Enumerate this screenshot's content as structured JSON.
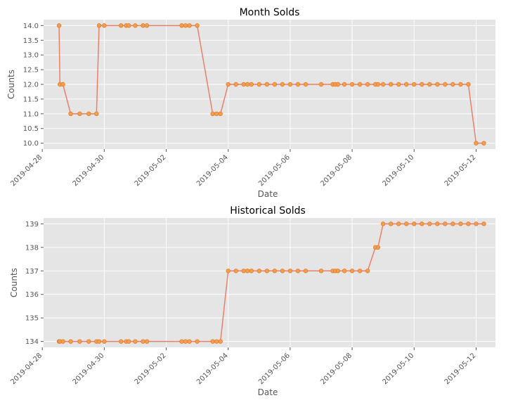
{
  "chart_data": [
    {
      "type": "line",
      "title": "Month Solds",
      "xlabel": "Date",
      "ylabel": "Counts",
      "xlim": [
        "2019-04-28T01:00",
        "2019-05-12T15:00"
      ],
      "ylim": [
        9.8,
        14.2
      ],
      "yticks": [
        10.0,
        10.5,
        11.0,
        11.5,
        12.0,
        12.5,
        13.0,
        13.5,
        14.0
      ],
      "ytick_labels": [
        "10.0",
        "10.5",
        "11.0",
        "11.5",
        "12.0",
        "12.5",
        "13.0",
        "13.5",
        "14.0"
      ],
      "xticks": [
        "2019-04-28",
        "2019-04-30",
        "2019-05-02",
        "2019-05-04",
        "2019-05-06",
        "2019-05-08",
        "2019-05-10",
        "2019-05-12"
      ],
      "grid": true,
      "x": [
        "2019-04-28T13:00",
        "2019-04-28T13:40",
        "2019-04-28T16:00",
        "2019-04-28T22:00",
        "2019-04-29T05:00",
        "2019-04-29T12:00",
        "2019-04-29T18:00",
        "2019-04-29T20:00",
        "2019-04-30T00:00",
        "2019-04-30T13:00",
        "2019-04-30T17:00",
        "2019-04-30T19:00",
        "2019-05-01T00:00",
        "2019-05-01T06:00",
        "2019-05-01T09:00",
        "2019-05-02T12:00",
        "2019-05-02T15:00",
        "2019-05-02T18:00",
        "2019-05-03T00:00",
        "2019-05-03T12:00",
        "2019-05-03T15:00",
        "2019-05-03T18:00",
        "2019-05-04T00:00",
        "2019-05-04T06:00",
        "2019-05-04T12:00",
        "2019-05-04T15:00",
        "2019-05-04T18:00",
        "2019-05-05T00:00",
        "2019-05-05T06:00",
        "2019-05-05T12:00",
        "2019-05-05T18:00",
        "2019-05-06T00:00",
        "2019-05-06T06:00",
        "2019-05-06T12:00",
        "2019-05-07T00:00",
        "2019-05-07T09:00",
        "2019-05-07T11:00",
        "2019-05-07T13:00",
        "2019-05-07T18:00",
        "2019-05-08T00:00",
        "2019-05-08T06:00",
        "2019-05-08T12:00",
        "2019-05-08T18:00",
        "2019-05-08T20:00",
        "2019-05-09T00:00",
        "2019-05-09T06:00",
        "2019-05-09T12:00",
        "2019-05-09T18:00",
        "2019-05-10T00:00",
        "2019-05-10T06:00",
        "2019-05-10T12:00",
        "2019-05-10T18:00",
        "2019-05-11T00:00",
        "2019-05-11T06:00",
        "2019-05-11T12:00",
        "2019-05-11T18:00",
        "2019-05-12T00:00",
        "2019-05-12T06:00"
      ],
      "series": [
        {
          "values": [
            14,
            12,
            12,
            11,
            11,
            11,
            11,
            14,
            14,
            14,
            14,
            14,
            14,
            14,
            14,
            14,
            14,
            14,
            14,
            11,
            11,
            11,
            12,
            12,
            12,
            12,
            12,
            12,
            12,
            12,
            12,
            12,
            12,
            12,
            12,
            12,
            12,
            12,
            12,
            12,
            12,
            12,
            12,
            12,
            12,
            12,
            12,
            12,
            12,
            12,
            12,
            12,
            12,
            12,
            12,
            12,
            10,
            10
          ],
          "color": "#e8806a",
          "marker_color": "#f59f4e"
        }
      ]
    },
    {
      "type": "line",
      "title": "Historical Solds",
      "xlabel": "Date",
      "ylabel": "Counts",
      "xlim": [
        "2019-04-28T01:00",
        "2019-05-12T15:00"
      ],
      "ylim": [
        133.75,
        139.25
      ],
      "yticks": [
        134,
        135,
        136,
        137,
        138,
        139
      ],
      "ytick_labels": [
        "134",
        "135",
        "136",
        "137",
        "138",
        "139"
      ],
      "xticks": [
        "2019-04-28",
        "2019-04-30",
        "2019-05-02",
        "2019-05-04",
        "2019-05-06",
        "2019-05-08",
        "2019-05-10",
        "2019-05-12"
      ],
      "grid": true,
      "x": [
        "2019-04-28T13:00",
        "2019-04-28T13:40",
        "2019-04-28T16:00",
        "2019-04-28T22:00",
        "2019-04-29T05:00",
        "2019-04-29T12:00",
        "2019-04-29T18:00",
        "2019-04-29T20:00",
        "2019-04-30T00:00",
        "2019-04-30T13:00",
        "2019-04-30T17:00",
        "2019-04-30T19:00",
        "2019-05-01T00:00",
        "2019-05-01T06:00",
        "2019-05-01T09:00",
        "2019-05-02T12:00",
        "2019-05-02T15:00",
        "2019-05-02T18:00",
        "2019-05-03T00:00",
        "2019-05-03T12:00",
        "2019-05-03T15:00",
        "2019-05-03T18:00",
        "2019-05-04T00:00",
        "2019-05-04T06:00",
        "2019-05-04T12:00",
        "2019-05-04T15:00",
        "2019-05-04T18:00",
        "2019-05-05T00:00",
        "2019-05-05T06:00",
        "2019-05-05T12:00",
        "2019-05-05T18:00",
        "2019-05-06T00:00",
        "2019-05-06T06:00",
        "2019-05-06T12:00",
        "2019-05-07T00:00",
        "2019-05-07T09:00",
        "2019-05-07T11:00",
        "2019-05-07T13:00",
        "2019-05-07T18:00",
        "2019-05-08T00:00",
        "2019-05-08T06:00",
        "2019-05-08T12:00",
        "2019-05-08T18:00",
        "2019-05-08T20:00",
        "2019-05-09T00:00",
        "2019-05-09T06:00",
        "2019-05-09T12:00",
        "2019-05-09T18:00",
        "2019-05-10T00:00",
        "2019-05-10T06:00",
        "2019-05-10T12:00",
        "2019-05-10T18:00",
        "2019-05-11T00:00",
        "2019-05-11T06:00",
        "2019-05-11T12:00",
        "2019-05-11T18:00",
        "2019-05-12T00:00",
        "2019-05-12T06:00"
      ],
      "series": [
        {
          "values": [
            134,
            134,
            134,
            134,
            134,
            134,
            134,
            134,
            134,
            134,
            134,
            134,
            134,
            134,
            134,
            134,
            134,
            134,
            134,
            134,
            134,
            134,
            137,
            137,
            137,
            137,
            137,
            137,
            137,
            137,
            137,
            137,
            137,
            137,
            137,
            137,
            137,
            137,
            137,
            137,
            137,
            137,
            138,
            138,
            139,
            139,
            139,
            139,
            139,
            139,
            139,
            139,
            139,
            139,
            139,
            139,
            139,
            139
          ],
          "color": "#e8806a",
          "marker_color": "#f59f4e"
        }
      ]
    }
  ],
  "colors": {
    "axes_background": "#e5e5e5",
    "grid": "#ffffff",
    "line": "#e8806a",
    "marker_fill": "#f59f4e",
    "marker_edge": "#e07b2a"
  }
}
